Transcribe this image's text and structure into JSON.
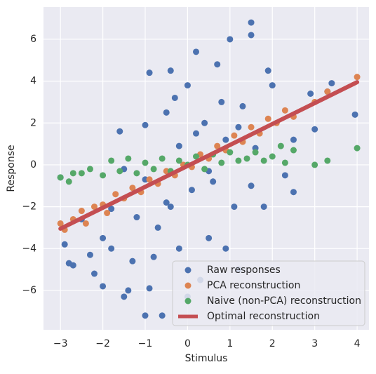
{
  "chart_data": {
    "type": "scatter",
    "xlabel": "Stimulus",
    "ylabel": "Response",
    "xlim": [
      -3.4,
      4.28
    ],
    "ylim": [
      -7.88,
      7.54
    ],
    "xticks": [
      {
        "value": -3,
        "label": "−3"
      },
      {
        "value": -2,
        "label": "−2"
      },
      {
        "value": -1,
        "label": "−1"
      },
      0,
      1,
      2,
      3,
      4
    ],
    "yticks": [
      {
        "value": -6,
        "label": "−6"
      },
      {
        "value": -4,
        "label": "−4"
      },
      {
        "value": -2,
        "label": "−2"
      },
      0,
      2,
      4,
      6
    ],
    "grid": true,
    "legend": "lower right",
    "background": "#eaeaf2",
    "series": [
      {
        "name": "Raw responses",
        "type": "scatter",
        "color": "#4c72b0",
        "x": [
          -3,
          -2.9,
          -2.8,
          -2.7,
          -2.5,
          -2.3,
          -2.2,
          -2,
          -2,
          -1.8,
          -1.8,
          -1.6,
          -1.5,
          -1.4,
          -1.3,
          -1.2,
          -1,
          -1,
          -0.9,
          -0.9,
          -0.8,
          -0.7,
          -0.6,
          -0.5,
          -0.4,
          -0.4,
          -0.3,
          -0.2,
          0,
          0,
          0.1,
          0.2,
          0.3,
          0.4,
          0.5,
          0.6,
          0.7,
          0.9,
          0.9,
          1,
          1.1,
          1.3,
          1.5,
          1.5,
          1.6,
          1.8,
          1.9,
          2,
          2.3,
          2.5,
          2.5,
          2.9,
          3,
          3.3,
          3.4,
          3.95,
          0.2,
          -0.2,
          0.5,
          -1,
          1.2,
          -0.5,
          0.8,
          -1.5,
          1.5,
          1.2
        ],
        "values": [
          -0.6,
          -3.8,
          -4.7,
          -4.8,
          -2.6,
          -4.3,
          -5.2,
          -5.8,
          -3.5,
          -4,
          -2.1,
          1.6,
          -6.3,
          -6,
          -4.6,
          -2.5,
          -7.2,
          1.9,
          -5.9,
          4.4,
          -4.4,
          -3,
          -7.2,
          2.5,
          -2,
          4.5,
          3.2,
          -4,
          -6.3,
          3.8,
          -1.2,
          5.4,
          -5.5,
          2,
          -3.5,
          -0.8,
          4.8,
          -4,
          1.2,
          6,
          -2,
          2.8,
          6.2,
          -1,
          0.8,
          -2,
          4.5,
          3.8,
          -0.5,
          -1.3,
          1.2,
          3.4,
          1.7,
          3.5,
          3.9,
          2.4,
          1.5,
          0.9,
          -0.3,
          -0.7,
          1.8,
          -1.8,
          3,
          -0.2,
          6.8,
          -5
        ]
      },
      {
        "name": "PCA reconstruction",
        "type": "scatter",
        "color": "#dd8452",
        "x": [
          -3,
          -2.9,
          -2.7,
          -2.5,
          -2.4,
          -2.2,
          -2,
          -1.9,
          -1.7,
          -1.5,
          -1.3,
          -1.1,
          -0.9,
          -0.7,
          -0.5,
          -0.3,
          -0.1,
          0.1,
          0.3,
          0.5,
          0.7,
          0.9,
          1.1,
          1.3,
          1.5,
          1.7,
          1.9,
          2.1,
          2.3,
          2.5,
          3,
          3.3,
          4
        ],
        "values": [
          -2.8,
          -3.1,
          -2.6,
          -2.2,
          -2.8,
          -2,
          -1.9,
          -2.3,
          -1.4,
          -1.6,
          -1.1,
          -1.3,
          -0.7,
          -0.9,
          -0.3,
          -0.5,
          0,
          -0.1,
          0.5,
          0.3,
          0.9,
          0.7,
          1.4,
          1.1,
          1.8,
          1.5,
          2.2,
          2,
          2.6,
          2.3,
          3,
          3.5,
          4.2
        ]
      },
      {
        "name": "Naive (non-PCA) reconstruction",
        "type": "scatter",
        "color": "#55a868",
        "x": [
          -3,
          -2.8,
          -2.7,
          -2.5,
          -2.3,
          -2,
          -1.8,
          -1.6,
          -1.4,
          -1.2,
          -1,
          -0.8,
          -0.6,
          -0.4,
          -0.2,
          0,
          0.2,
          0.4,
          0.6,
          0.8,
          1,
          1.2,
          1.4,
          1.6,
          1.8,
          2,
          2.2,
          2.3,
          2.5,
          3,
          3.3,
          4
        ],
        "values": [
          -0.6,
          -0.8,
          -0.4,
          -0.4,
          -0.2,
          -0.5,
          0.2,
          -0.3,
          0.3,
          -0.4,
          0.1,
          -0.2,
          0.3,
          -0.3,
          0.2,
          0,
          0.4,
          -0.2,
          0.5,
          0.1,
          0.6,
          0.2,
          0.3,
          0.6,
          0.2,
          0.4,
          0.9,
          0.1,
          0.7,
          0,
          0.2,
          0.8
        ]
      },
      {
        "name": "Optimal reconstruction",
        "type": "line",
        "color": "#c44e52",
        "x": [
          -3,
          4
        ],
        "values": [
          -3.05,
          3.95
        ]
      }
    ]
  }
}
